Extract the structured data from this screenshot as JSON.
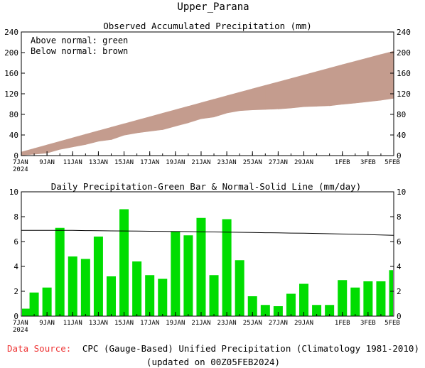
{
  "figure": {
    "title": "Upper_Parana",
    "footer": {
      "source_label": "Data Source:",
      "source_text": "CPC (Gauge-Based) Unified Precipitation (Climatology 1981-2010)",
      "updated": "(updated on 00Z05FEB2024)"
    },
    "colors": {
      "accumulated_band": "#c49c8e",
      "daily_bar": "#00dd00",
      "normal_line": "#000000",
      "source_label": "#ee3333"
    }
  },
  "chart_data": [
    {
      "type": "area",
      "title": "Observed Accumulated Precipitation (mm)",
      "legend_lines": [
        "Above normal: green",
        "Below normal: brown"
      ],
      "x_tick_labels": [
        "7JAN",
        "9JAN",
        "11JAN",
        "13JAN",
        "15JAN",
        "17JAN",
        "19JAN",
        "21JAN",
        "23JAN",
        "25JAN",
        "27JAN",
        "29JAN",
        "1FEB",
        "3FEB",
        "5FEB"
      ],
      "x_tick_year": "2024",
      "x_tick_dates": [
        "2024-01-07",
        "2024-01-09",
        "2024-01-11",
        "2024-01-13",
        "2024-01-15",
        "2024-01-17",
        "2024-01-19",
        "2024-01-21",
        "2024-01-23",
        "2024-01-25",
        "2024-01-27",
        "2024-01-29",
        "2024-02-01",
        "2024-02-03",
        "2024-02-05"
      ],
      "xlim": [
        "2024-01-07",
        "2024-02-05"
      ],
      "ylim": [
        0,
        240
      ],
      "y_ticks": [
        0,
        40,
        80,
        120,
        160,
        200,
        240
      ],
      "dates": [
        "2024-01-07",
        "2024-01-08",
        "2024-01-09",
        "2024-01-10",
        "2024-01-11",
        "2024-01-12",
        "2024-01-13",
        "2024-01-14",
        "2024-01-15",
        "2024-01-16",
        "2024-01-17",
        "2024-01-18",
        "2024-01-19",
        "2024-01-20",
        "2024-01-21",
        "2024-01-22",
        "2024-01-23",
        "2024-01-24",
        "2024-01-25",
        "2024-01-26",
        "2024-01-27",
        "2024-01-28",
        "2024-01-29",
        "2024-01-30",
        "2024-01-31",
        "2024-02-01",
        "2024-02-02",
        "2024-02-03",
        "2024-02-04",
        "2024-02-05"
      ],
      "series": [
        {
          "name": "Observed",
          "values": [
            0.7,
            2.6,
            4.9,
            12.0,
            16.8,
            21.4,
            27.8,
            31.0,
            39.6,
            44.0,
            47.3,
            50.3,
            57.1,
            63.6,
            71.5,
            74.8,
            82.6,
            87.1,
            88.7,
            89.6,
            90.5,
            92.3,
            94.9,
            95.8,
            96.7,
            99.6,
            101.9,
            104.7,
            107.5,
            111.2
          ]
        },
        {
          "name": "Normal",
          "values": [
            6.9,
            13.8,
            20.7,
            27.6,
            34.5,
            41.4,
            48.2,
            55.0,
            61.8,
            68.6,
            75.4,
            82.2,
            89.0,
            95.8,
            102.6,
            109.4,
            116.2,
            122.9,
            129.6,
            136.3,
            143.0,
            149.7,
            156.4,
            163.1,
            169.8,
            176.5,
            183.1,
            189.7,
            196.3,
            202.8
          ]
        }
      ]
    },
    {
      "type": "bar",
      "title": "Daily Precipitation-Green Bar & Normal-Solid Line (mm/day)",
      "x_tick_labels": [
        "7JAN",
        "9JAN",
        "11JAN",
        "13JAN",
        "15JAN",
        "17JAN",
        "19JAN",
        "21JAN",
        "23JAN",
        "25JAN",
        "27JAN",
        "29JAN",
        "1FEB",
        "3FEB",
        "5FEB"
      ],
      "x_tick_year": "2024",
      "x_tick_dates": [
        "2024-01-07",
        "2024-01-09",
        "2024-01-11",
        "2024-01-13",
        "2024-01-15",
        "2024-01-17",
        "2024-01-19",
        "2024-01-21",
        "2024-01-23",
        "2024-01-25",
        "2024-01-27",
        "2024-01-29",
        "2024-02-01",
        "2024-02-03",
        "2024-02-05"
      ],
      "xlim": [
        "2024-01-07",
        "2024-02-05"
      ],
      "ylim": [
        0,
        10
      ],
      "y_ticks": [
        0,
        2,
        4,
        6,
        8,
        10
      ],
      "dates": [
        "2024-01-07",
        "2024-01-08",
        "2024-01-09",
        "2024-01-10",
        "2024-01-11",
        "2024-01-12",
        "2024-01-13",
        "2024-01-14",
        "2024-01-15",
        "2024-01-16",
        "2024-01-17",
        "2024-01-18",
        "2024-01-19",
        "2024-01-20",
        "2024-01-21",
        "2024-01-22",
        "2024-01-23",
        "2024-01-24",
        "2024-01-25",
        "2024-01-26",
        "2024-01-27",
        "2024-01-28",
        "2024-01-29",
        "2024-01-30",
        "2024-01-31",
        "2024-02-01",
        "2024-02-02",
        "2024-02-03",
        "2024-02-04",
        "2024-02-05"
      ],
      "series": [
        {
          "name": "Daily Precipitation",
          "values": [
            0.6,
            1.9,
            2.3,
            7.1,
            4.8,
            4.6,
            6.4,
            3.2,
            8.6,
            4.4,
            3.3,
            3.0,
            6.8,
            6.5,
            7.9,
            3.3,
            7.8,
            4.5,
            1.6,
            0.9,
            0.8,
            1.8,
            2.6,
            0.9,
            0.9,
            2.9,
            2.3,
            2.8,
            2.8,
            3.7
          ]
        },
        {
          "name": "Normal",
          "values": [
            6.9,
            6.9,
            6.9,
            6.9,
            6.9,
            6.88,
            6.87,
            6.86,
            6.85,
            6.84,
            6.83,
            6.82,
            6.81,
            6.8,
            6.78,
            6.77,
            6.76,
            6.74,
            6.73,
            6.71,
            6.7,
            6.68,
            6.67,
            6.65,
            6.63,
            6.61,
            6.59,
            6.56,
            6.53,
            6.5
          ]
        }
      ]
    }
  ]
}
